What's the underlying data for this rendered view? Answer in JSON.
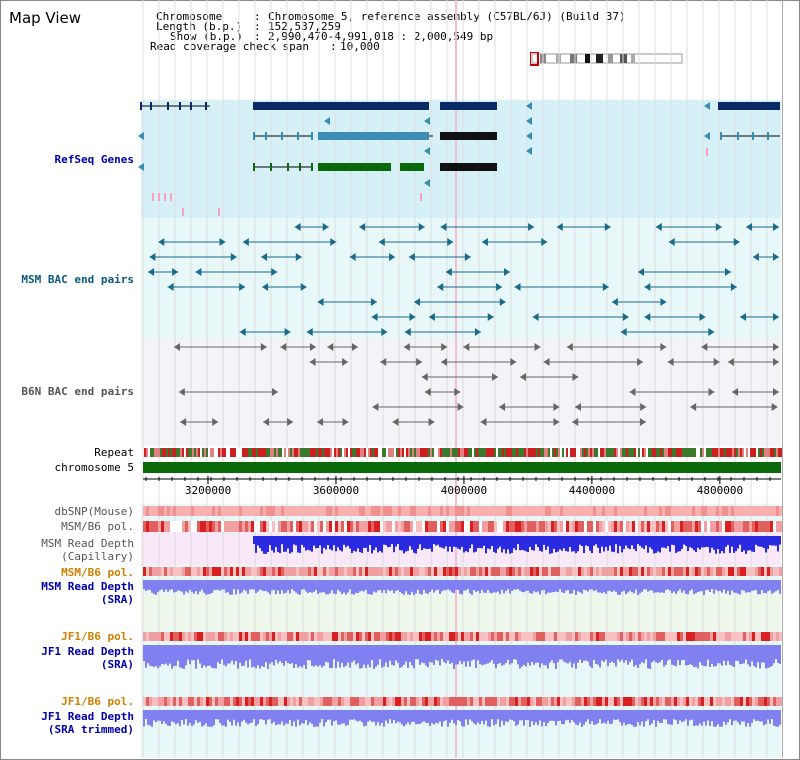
{
  "view": {
    "title": "Map View"
  },
  "info": {
    "chromosome_key": "Chromosome",
    "chromosome_val": "Chromosome 5, reference assembly (C57BL/6J) (Build 37)",
    "length_key": "Length (b.p.)",
    "length_val": "152,537,259",
    "show_key": "Show (b.p.)",
    "show_val": "2,990,470-4,991,018 : 2,000,549 bp",
    "coverage_key": "Read coverage check span",
    "coverage_val": "10,000"
  },
  "tracks": {
    "refseq": "RefSeq Genes",
    "msm_bac": "MSM BAC end pairs",
    "b6n_bac": "B6N BAC end pairs",
    "repeat": "Repeat",
    "chromosome": "chromosome 5",
    "dbsnp": "dbSNP(Mouse)",
    "msm_b6_pol": "MSM/B6 pol.",
    "msm_depth_cap_1": "MSM Read Depth",
    "msm_depth_cap_2": "(Capillary)",
    "msm_b6_pol_2": "MSM/B6 pol.",
    "msm_depth_sra_1": "MSM Read Depth",
    "msm_depth_sra_2": "(SRA)",
    "jf1_b6_pol": "JF1/B6 pol.",
    "jf1_depth_sra_1": "JF1 Read Depth",
    "jf1_depth_sra_2": "(SRA)",
    "jf1_b6_pol_2": "JF1/B6 pol.",
    "jf1_depth_trim_1": "JF1 Read Depth",
    "jf1_depth_trim_2": "(SRA trimmed)"
  },
  "axis": {
    "ticks": [
      "3200000",
      "3600000",
      "4000000",
      "4400000",
      "4800000"
    ],
    "tick_values": [
      3200000,
      3600000,
      4000000,
      4400000,
      4800000
    ],
    "start": 2990470,
    "end": 4991018
  },
  "colors": {
    "refseq_bg": "#d6f0f8",
    "msm_bg": "#e8f8f8",
    "b6n_bg": "#f4f4f8",
    "gene_navy": "#0a2a66",
    "gene_teal": "#3a8cb0",
    "gene_green": "#0a6a0a",
    "bac_teal": "#1a6a8a",
    "bac_gray": "#666666",
    "chrom_green": "#0a6a0a",
    "depth_blue": "#2a2ae0",
    "depth_light": "#8080f0",
    "label_blue": "#0000aa",
    "label_orange": "#d08000"
  }
}
